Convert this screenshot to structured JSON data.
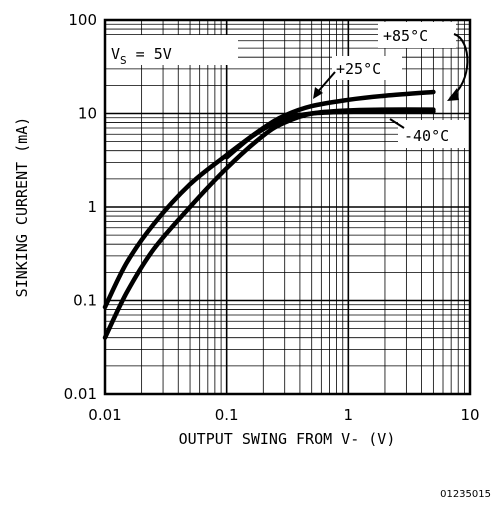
{
  "chart_data": {
    "type": "line",
    "xlabel": "OUTPUT SWING FROM V- (V)",
    "ylabel": "SINKING CURRENT (mA)",
    "x_scale": "log",
    "y_scale": "log",
    "xlim": [
      0.01,
      10
    ],
    "ylim": [
      0.01,
      100
    ],
    "x_tick_labels": [
      "0.01",
      "0.1",
      "1",
      "10"
    ],
    "y_tick_labels": [
      "0.01",
      "0.1",
      "1",
      "10",
      "100"
    ],
    "grid": true,
    "condition": {
      "prefix": "V",
      "subscript": "S",
      "suffix": " = 5V"
    },
    "series": [
      {
        "name": "+85°C",
        "x": [
          0.01,
          0.015,
          0.025,
          0.05,
          0.1,
          0.2,
          0.3,
          0.5,
          1,
          2,
          5
        ],
        "y": [
          0.04,
          0.12,
          0.35,
          1.0,
          2.6,
          5.8,
          8.0,
          10.0,
          10.8,
          11.0,
          11.0
        ]
      },
      {
        "name": "+25°C",
        "x": [
          0.01,
          0.015,
          0.025,
          0.05,
          0.1,
          0.2,
          0.3,
          0.5,
          1,
          2,
          5
        ],
        "y": [
          0.085,
          0.25,
          0.65,
          1.75,
          3.6,
          7.0,
          9.5,
          12.0,
          14.0,
          15.5,
          17.0
        ]
      },
      {
        "name": "-40°C",
        "x": [
          0.1,
          0.15,
          0.2,
          0.3,
          0.5,
          1,
          2,
          5
        ],
        "y": [
          3.4,
          5.3,
          6.8,
          8.8,
          10.0,
          10.4,
          10.5,
          10.5
        ]
      }
    ],
    "annotations": [
      "+85°C",
      "+25°C",
      "-40°C"
    ],
    "figure_code": "01235015"
  }
}
